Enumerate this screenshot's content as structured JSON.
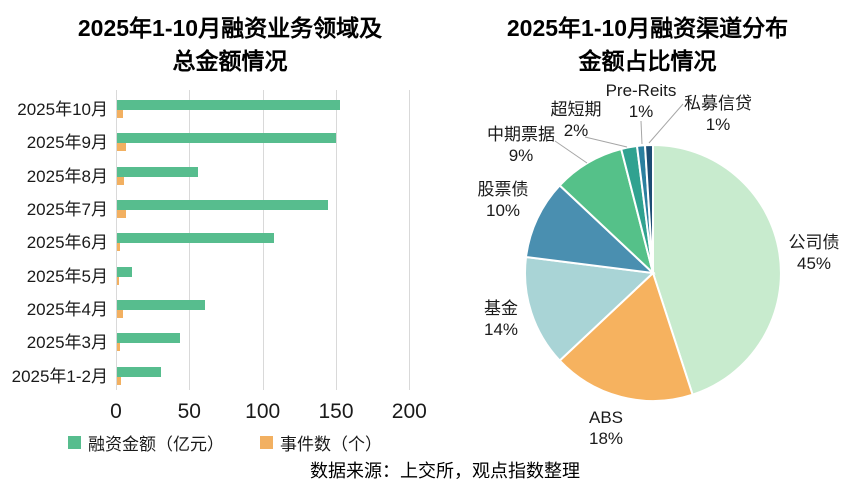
{
  "source_note": "数据来源：上交所，观点指数整理",
  "colors": {
    "amount_bar": "#57bd8e",
    "events_bar": "#f2b061",
    "gridline": "#d9d9d9",
    "leader_line": "#a6a6a6",
    "title_text": "#000000"
  },
  "chart_data": [
    {
      "type": "bar",
      "orientation": "horizontal",
      "title_lines": [
        "2025年1-10月融资业务领域及",
        "总金额情况"
      ],
      "categories": [
        "2025年10月",
        "2025年9月",
        "2025年8月",
        "2025年7月",
        "2025年6月",
        "2025年5月",
        "2025年4月",
        "2025年3月",
        "2025年1-2月"
      ],
      "series": [
        {
          "name": "融资金额（亿元）",
          "color": "#57bd8e",
          "values": [
            152,
            149,
            55,
            144,
            107,
            10,
            60,
            43,
            30
          ]
        },
        {
          "name": "事件数（个）",
          "color": "#f2b061",
          "values": [
            4,
            6,
            5,
            6,
            2,
            1,
            4,
            2,
            3
          ]
        }
      ],
      "xlim": [
        0,
        200
      ],
      "x_ticks": [
        0,
        50,
        100,
        150,
        200
      ],
      "x_tick_labels": [
        "0",
        "50",
        "100",
        "150",
        "200"
      ],
      "grid": true,
      "legend_position": "bottom"
    },
    {
      "type": "pie",
      "title_lines": [
        "2025年1-10月融资渠道分布",
        "金额占比情况"
      ],
      "start_angle_deg": 0,
      "direction": "clockwise",
      "slices": [
        {
          "label": "公司债",
          "pct": 45,
          "color": "#c8ebce"
        },
        {
          "label": "ABS",
          "pct": 18,
          "color": "#f6b25f"
        },
        {
          "label": "基金",
          "pct": 14,
          "color": "#a9d4d6"
        },
        {
          "label": "股票债",
          "pct": 10,
          "color": "#4a8fb0"
        },
        {
          "label": "中期票据",
          "pct": 9,
          "color": "#55c189"
        },
        {
          "label": "超短期",
          "pct": 2,
          "color": "#30a290"
        },
        {
          "label": "Pre-Reits",
          "pct": 1,
          "color": "#2b7f9f"
        },
        {
          "label": "私募信贷",
          "pct": 1,
          "color": "#1d4d74"
        }
      ]
    }
  ]
}
